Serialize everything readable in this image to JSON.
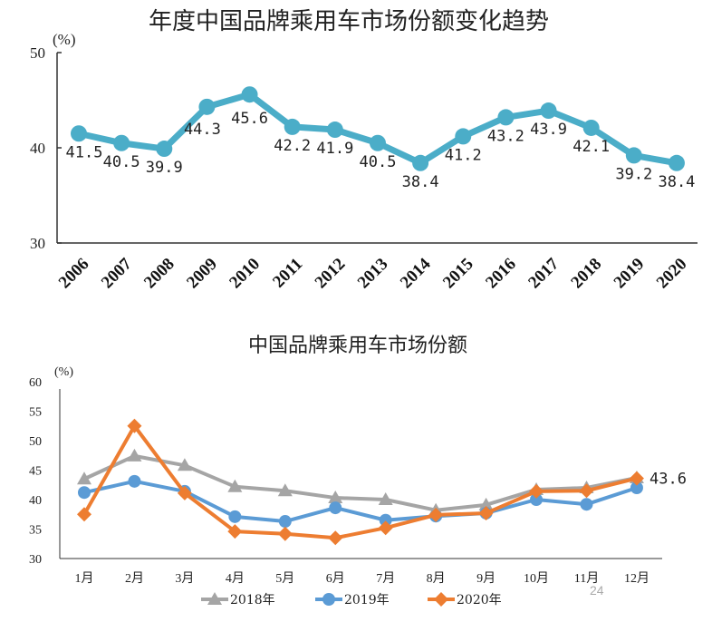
{
  "chart_data": [
    {
      "type": "line",
      "title": "年度中国品牌乘用车市场份额变化趋势",
      "ylabel": "(%)",
      "ylim": [
        30,
        50
      ],
      "yticks": [
        "30",
        "40",
        "50"
      ],
      "categories": [
        "2006",
        "2007",
        "2008",
        "2009",
        "2010",
        "2011",
        "2012",
        "2013",
        "2014",
        "2015",
        "2016",
        "2017",
        "2018",
        "2019",
        "2020"
      ],
      "values": [
        41.5,
        40.5,
        39.9,
        44.3,
        45.6,
        42.2,
        41.9,
        40.5,
        38.4,
        41.2,
        43.2,
        43.9,
        42.1,
        39.2,
        38.4
      ],
      "data_labels": [
        "41.5",
        "40.5",
        "39.9",
        "44.3",
        "45.6",
        "42.2",
        "41.9",
        "40.5",
        "38.4",
        "41.2",
        "43.2",
        "43.9",
        "42.1",
        "39.2",
        "38.4"
      ],
      "color": "#4BADC8",
      "grid": false
    },
    {
      "type": "line",
      "title": "中国品牌乘用车市场份额",
      "ylabel": "(%)",
      "ylim": [
        30,
        60
      ],
      "yticks": [
        "30",
        "35",
        "40",
        "45",
        "50",
        "55",
        "60"
      ],
      "categories": [
        "1月",
        "2月",
        "3月",
        "4月",
        "5月",
        "6月",
        "7月",
        "8月",
        "9月",
        "10月",
        "11月",
        "12月"
      ],
      "series": [
        {
          "name": "2018年",
          "color": "#A5A5A5",
          "marker": "triangle",
          "values": [
            43.5,
            47.4,
            45.8,
            42.2,
            41.5,
            40.3,
            40.0,
            38.2,
            39.1,
            41.7,
            42.0,
            43.7
          ]
        },
        {
          "name": "2019年",
          "color": "#5B9BD5",
          "marker": "circle",
          "values": [
            41.2,
            43.1,
            41.4,
            37.1,
            36.3,
            38.6,
            36.5,
            37.2,
            37.7,
            40.0,
            39.2,
            42.0
          ]
        },
        {
          "name": "2020年",
          "color": "#ED7D31",
          "marker": "diamond",
          "values": [
            37.5,
            52.5,
            41.1,
            34.6,
            34.2,
            33.5,
            35.2,
            37.4,
            37.7,
            41.4,
            41.5,
            43.6
          ]
        }
      ],
      "annotation": "43.6",
      "legend": "bottom",
      "grid": false
    }
  ],
  "page_number": "24"
}
